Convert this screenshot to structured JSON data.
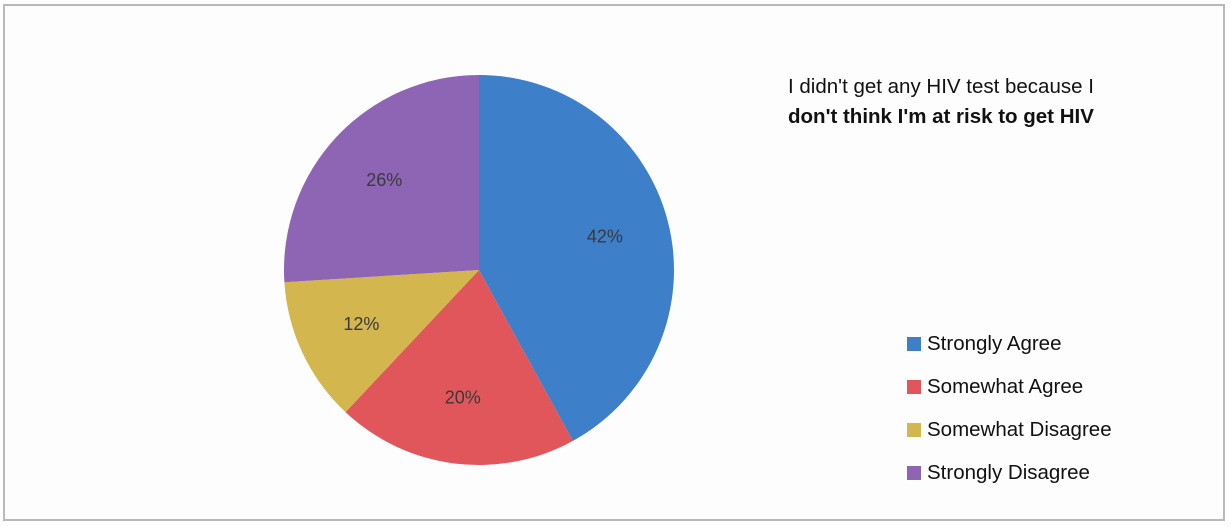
{
  "chart_data": {
    "type": "pie",
    "title_lines": [
      "I didn't get any HIV test because I",
      "don't think I'm at risk to get HIV"
    ],
    "slices": [
      {
        "label": "Strongly Agree",
        "value": 42,
        "display": "42%",
        "color": "#3d7fc9"
      },
      {
        "label": "Somewhat Agree",
        "value": 20,
        "display": "20%",
        "color": "#e0565b"
      },
      {
        "label": "Somewhat Disagree",
        "value": 12,
        "display": "12%",
        "color": "#d4b64f"
      },
      {
        "label": "Strongly Disagree",
        "value": 26,
        "display": "26%",
        "color": "#8e65b5"
      }
    ],
    "start": "12 o'clock",
    "direction": "clockwise",
    "legend_position": "bottom-right"
  }
}
